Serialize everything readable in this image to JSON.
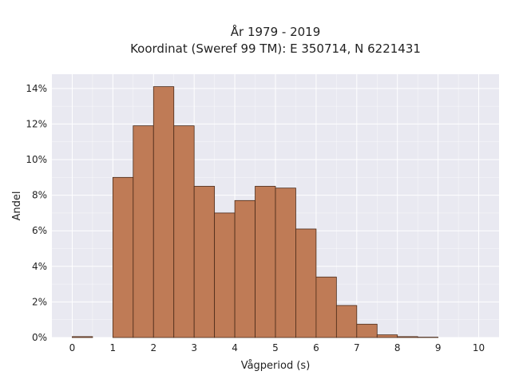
{
  "chart_data": {
    "type": "bar",
    "title_line1": "År 1979 - 2019",
    "title_line2": "Koordinat (Sweref 99 TM): E 350714, N 6221431",
    "xlabel": "Vågperiod (s)",
    "ylabel": "Andel",
    "bin_width": 0.5,
    "bin_starts": [
      0,
      0.5,
      1,
      1.5,
      2,
      2.5,
      3,
      3.5,
      4,
      4.5,
      5,
      5.5,
      6,
      6.5,
      7,
      7.5,
      8,
      8.5,
      9,
      9.5
    ],
    "values": [
      0.0005,
      0,
      0.09,
      0.119,
      0.141,
      0.119,
      0.085,
      0.07,
      0.077,
      0.085,
      0.084,
      0.061,
      0.034,
      0.018,
      0.0075,
      0.0015,
      0.0005,
      0.0002,
      0,
      0
    ],
    "xlim": [
      -0.5,
      10.5
    ],
    "ylim": [
      0,
      0.148
    ],
    "x_ticks": [
      "0",
      "1",
      "2",
      "3",
      "4",
      "5",
      "6",
      "7",
      "8",
      "9",
      "10"
    ],
    "y_ticks": [
      "0%",
      "2%",
      "4%",
      "6%",
      "8%",
      "10%",
      "12%",
      "14%"
    ],
    "y_tick_values": [
      0,
      0.02,
      0.04,
      0.06,
      0.08,
      0.1,
      0.12,
      0.14
    ],
    "grid": true,
    "colors": {
      "bar": "#bf7b56",
      "bar_edge": "#4a2a18",
      "plot_bg": "#e9e9f1"
    }
  }
}
